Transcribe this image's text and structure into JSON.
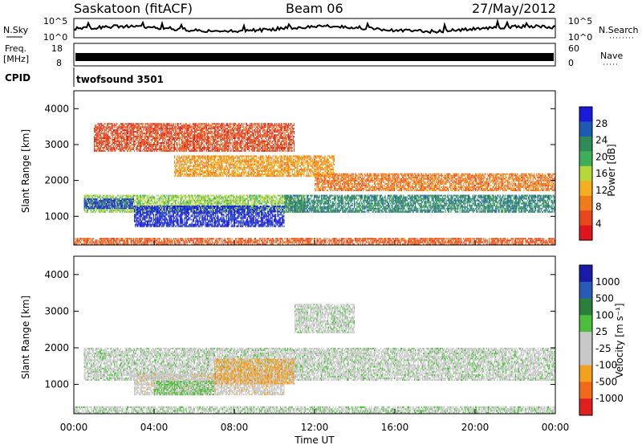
{
  "header": {
    "station": "Saskatoon (fitACF)",
    "beam": "Beam 06",
    "date": "27/May/2012"
  },
  "aux_panels": {
    "nsky_label": "N.Sky",
    "nsky_ticks": [
      "10^5",
      "10^0"
    ],
    "nsearch_label": "N.Search",
    "nsearch_ticks": [
      "10^5",
      "10^0"
    ],
    "freq_label_top": "Freq.",
    "freq_label_unit": "[MHz]",
    "freq_ticks": [
      "18",
      "8"
    ],
    "nave_label": "Nave",
    "nave_ticks": [
      "60",
      "0"
    ],
    "cpid_label": "CPID",
    "cpid_value": "twofsound 3501"
  },
  "colors": {
    "power_scale": [
      "#1a1adb",
      "#1c5ab3",
      "#2e8b57",
      "#3fae5a",
      "#b7d63a",
      "#f2b01e",
      "#f07b1a",
      "#e8461c",
      "#e0141c"
    ],
    "velocity_scale": [
      "#1a1aa8",
      "#2a5ab8",
      "#2a7f3a",
      "#4bbf3a",
      "#c8c8c8",
      "#c8c8c8",
      "#f2a01e",
      "#f06a1a",
      "#e02020"
    ]
  },
  "chart_data": [
    {
      "type": "heatmap",
      "name_panel": "power",
      "ylabel": "Slant Range [km]",
      "y_ticks": [
        "4000",
        "3000",
        "2000",
        "1000"
      ],
      "ylim": [
        200,
        4500
      ],
      "colorbar_label": "Power [dB]",
      "colorbar_ticks": [
        "28",
        "24",
        "20",
        "16",
        "12",
        "8",
        "4"
      ],
      "colorbar_range": [
        0,
        30
      ],
      "bands": [
        {
          "t": [
            0.5,
            11.5
          ],
          "r": [
            1100,
            1600
          ],
          "v": 16
        },
        {
          "t": [
            3.0,
            10.5
          ],
          "r": [
            700,
            1300
          ],
          "v": 28
        },
        {
          "t": [
            0.5,
            3.0
          ],
          "r": [
            1200,
            1500
          ],
          "v": 26
        },
        {
          "t": [
            10.5,
            24.0
          ],
          "r": [
            1100,
            1600
          ],
          "v": 22
        },
        {
          "t": [
            12.0,
            24.0
          ],
          "r": [
            1700,
            2200
          ],
          "v": 8
        },
        {
          "t": [
            0.0,
            24.0
          ],
          "r": [
            200,
            400
          ],
          "v": 6
        },
        {
          "t": [
            5.0,
            13.0
          ],
          "r": [
            2100,
            2700
          ],
          "v": 10
        },
        {
          "t": [
            1.0,
            11.0
          ],
          "r": [
            2800,
            3600
          ],
          "v": 5
        }
      ]
    },
    {
      "type": "heatmap",
      "name_panel": "velocity",
      "ylabel": "Slant Range [km]",
      "y_ticks": [
        "4000",
        "3000",
        "2000",
        "1000"
      ],
      "ylim": [
        200,
        4500
      ],
      "xlabel": "Time UT",
      "x_ticks": [
        "00:00",
        "04:00",
        "08:00",
        "12:00",
        "16:00",
        "20:00",
        "00:00"
      ],
      "xlim": [
        0,
        24
      ],
      "colorbar_label": "Velocity [m s⁻¹]",
      "colorbar_ticks": [
        "1000",
        "500",
        "100",
        "25",
        "-25",
        "-100",
        "-500",
        "-1000"
      ],
      "colorbar_range": [
        -1000,
        1000
      ],
      "bands": [
        {
          "t": [
            0.5,
            24.0
          ],
          "r": [
            1100,
            2000
          ],
          "v": 0
        },
        {
          "t": [
            3.0,
            10.5
          ],
          "r": [
            700,
            1300
          ],
          "v": -200
        },
        {
          "t": [
            7.0,
            11.0
          ],
          "r": [
            1000,
            1700
          ],
          "v": -400
        },
        {
          "t": [
            4.0,
            7.0
          ],
          "r": [
            700,
            1100
          ],
          "v": 150
        },
        {
          "t": [
            11.0,
            14.0
          ],
          "r": [
            2400,
            3200
          ],
          "v": 0
        },
        {
          "t": [
            0.0,
            24.0
          ],
          "r": [
            200,
            400
          ],
          "v": 30
        }
      ]
    }
  ]
}
